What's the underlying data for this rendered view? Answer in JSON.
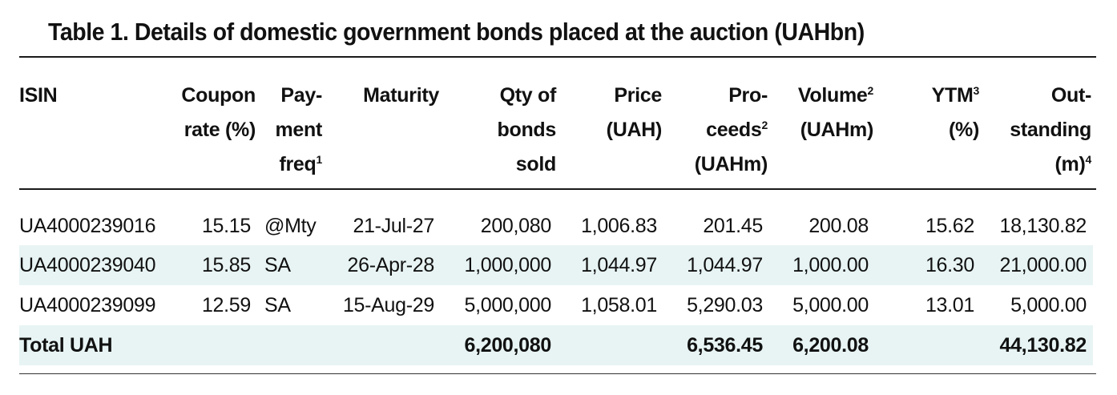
{
  "title": "Table 1. Details of domestic government bonds placed at the auction (UAHbn)",
  "headers": {
    "isin": [
      "ISIN"
    ],
    "coupon": [
      "Coupon",
      "rate (%)"
    ],
    "payfreq": [
      "Pay-",
      "ment",
      "freq"
    ],
    "payfreq_sup": "1",
    "maturity": [
      "Maturity"
    ],
    "qty": [
      "Qty of",
      "bonds",
      "sold"
    ],
    "price": [
      "Price",
      "(UAH)"
    ],
    "proceeds": [
      "Pro-",
      "ceeds",
      "(UAHm)"
    ],
    "proceeds_sup": "2",
    "volume": [
      "Volume",
      "(UAHm)"
    ],
    "volume_sup": "2",
    "ytm": [
      "YTM",
      "(%)"
    ],
    "ytm_sup": "3",
    "outstanding": [
      "Out-",
      "standing",
      "(m)"
    ],
    "outstanding_sup": "4"
  },
  "rows": [
    {
      "isin": "UA4000239016",
      "coupon": "15.15",
      "payfreq": "@Mty",
      "maturity": "21-Jul-27",
      "qty": "200,080",
      "price": "1,006.83",
      "proceeds": "201.45",
      "volume": "200.08",
      "ytm": "15.62",
      "outstanding": "18,130.82"
    },
    {
      "isin": "UA4000239040",
      "coupon": "15.85",
      "payfreq": "SA",
      "maturity": "26-Apr-28",
      "qty": "1,000,000",
      "price": "1,044.97",
      "proceeds": "1,044.97",
      "volume": "1,000.00",
      "ytm": "16.30",
      "outstanding": "21,000.00"
    },
    {
      "isin": "UA4000239099",
      "coupon": "12.59",
      "payfreq": "SA",
      "maturity": "15-Aug-29",
      "qty": "5,000,000",
      "price": "1,058.01",
      "proceeds": "5,290.03",
      "volume": "5,000.00",
      "ytm": "13.01",
      "outstanding": "5,000.00"
    }
  ],
  "total": {
    "label": "Total UAH",
    "qty": "6,200,080",
    "proceeds": "6,536.45",
    "volume": "6,200.08",
    "outstanding": "44,130.82"
  }
}
